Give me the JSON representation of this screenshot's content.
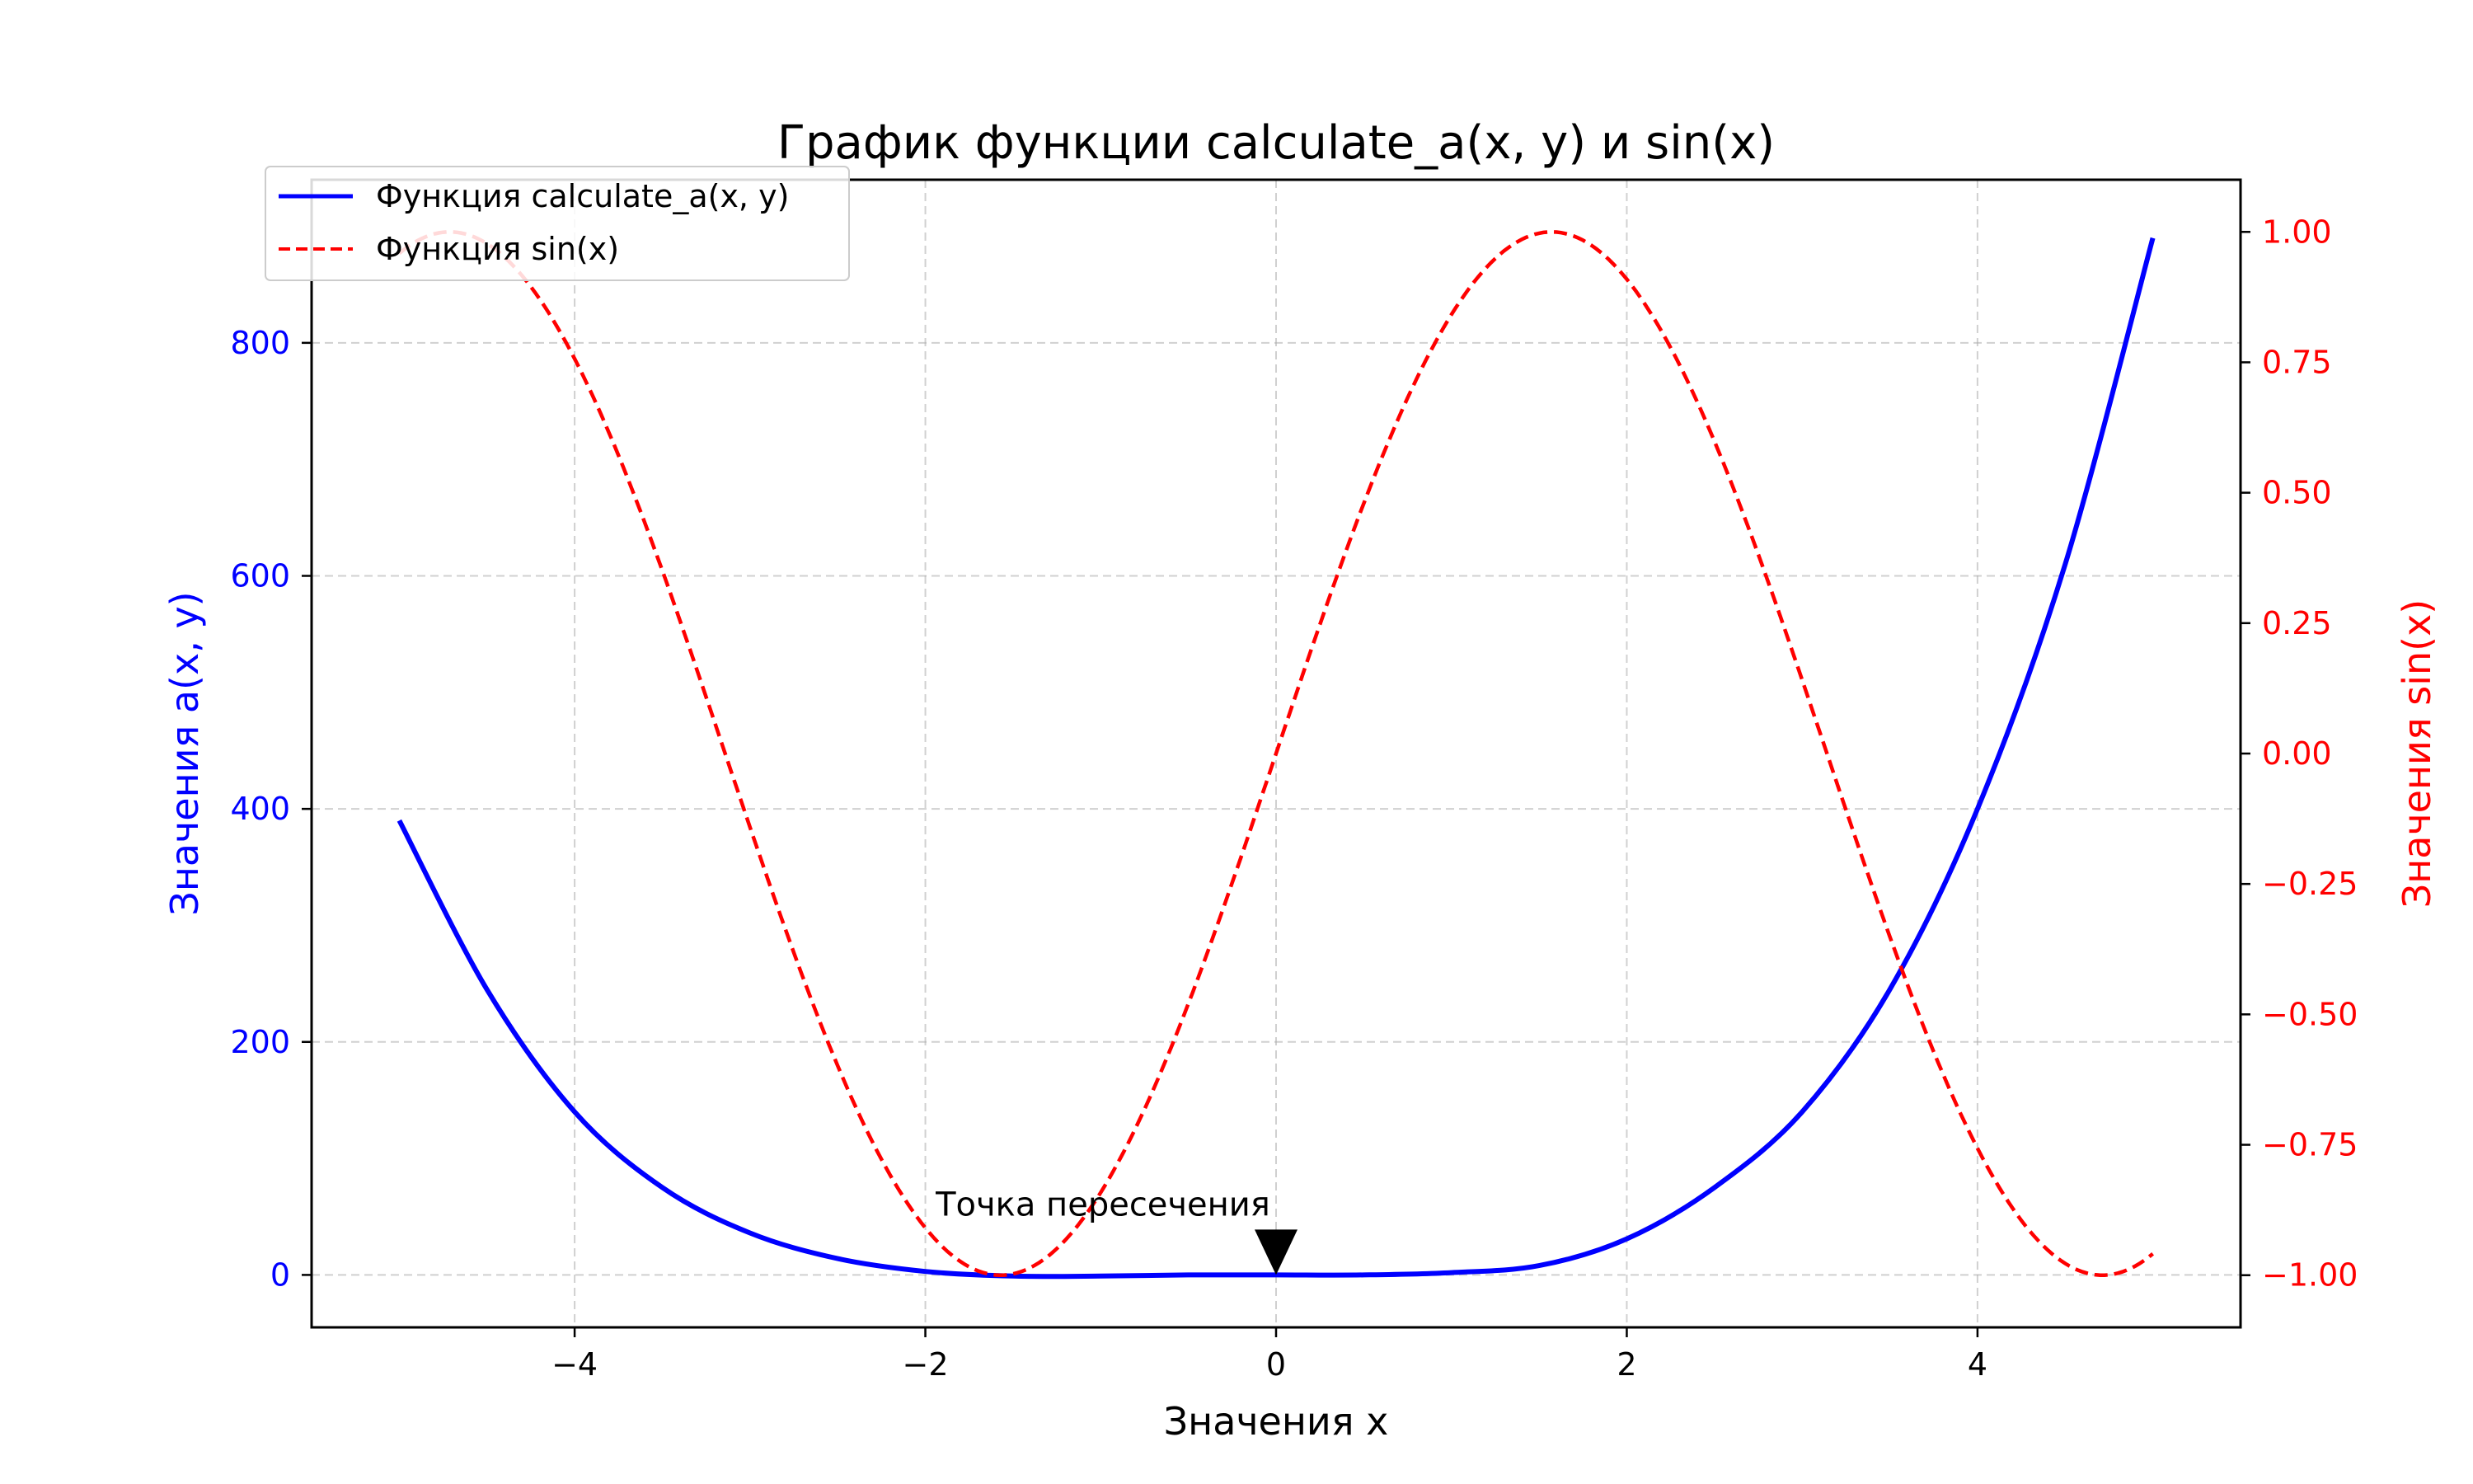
{
  "chart_data": {
    "type": "line",
    "title": "График функции calculate_a(x, y) и sin(x)",
    "xlabel": "Значения x",
    "ylabel_left": "Значения a(x, y)",
    "ylabel_right": "Значения sin(x)",
    "xlim": [
      -5.5,
      5.5
    ],
    "ylim_left": [
      -45,
      940
    ],
    "ylim_right": [
      -1.1,
      1.1
    ],
    "grid": true,
    "legend_position": "upper-left",
    "x_ticks": [
      -4,
      -2,
      0,
      2,
      4
    ],
    "x_tick_labels": [
      "−4",
      "−2",
      "0",
      "2",
      "4"
    ],
    "y_left_ticks": [
      0,
      200,
      400,
      600,
      800
    ],
    "y_left_tick_labels": [
      "0",
      "200",
      "400",
      "600",
      "800"
    ],
    "y_right_ticks": [
      1.0,
      0.75,
      0.5,
      0.25,
      0.0,
      -0.25,
      -0.5,
      -0.75,
      -1.0
    ],
    "y_right_tick_labels": [
      "1.00",
      "0.75",
      "0.50",
      "0.25",
      "0.00",
      "−0.25",
      "−0.50",
      "−0.75",
      "−1.00"
    ],
    "series": [
      {
        "name": "Функция calculate_a(x, y)",
        "axis": "left",
        "color": "#0000ff",
        "style": "solid",
        "x": [
          -5.0,
          -4.5,
          -4.0,
          -3.5,
          -3.0,
          -2.5,
          -2.0,
          -1.5,
          -1.0,
          -0.5,
          0.0,
          0.5,
          1.0,
          1.5,
          2.0,
          2.5,
          3.0,
          3.5,
          4.0,
          4.5,
          5.0
        ],
        "y": [
          390,
          245,
          140,
          75,
          36,
          14,
          3,
          -1,
          -1,
          0,
          0,
          0,
          2,
          8,
          31,
          75,
          140,
          245,
          400,
          610,
          890
        ]
      },
      {
        "name": "Функция sin(x)",
        "axis": "right",
        "color": "#ff0000",
        "style": "dashed",
        "function": "sin",
        "x_range": [
          -5.0,
          5.0
        ]
      }
    ],
    "annotations": [
      {
        "text": "Точка пересечения",
        "x": 0,
        "y": 0
      }
    ]
  }
}
